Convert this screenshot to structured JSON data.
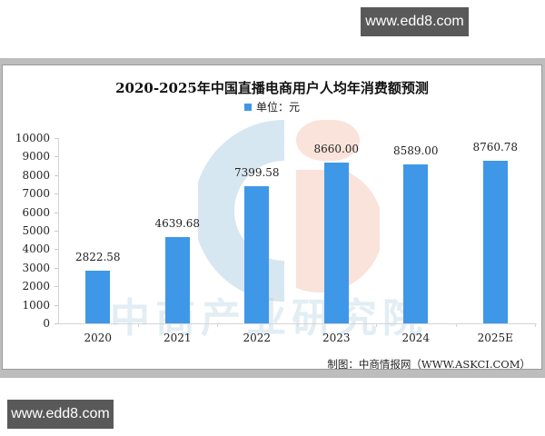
{
  "watermarks": {
    "top": "www.edd8.com",
    "bottom": "www.edd8.com"
  },
  "chart": {
    "title": "2020-2025年中国直播电商用户人均年消费额预测",
    "legend_label": "单位：元",
    "source": "制图：中商情报网（WWW.ASKCI.COM）",
    "background_watermark": "中商产业研究院",
    "bar_color": "#3f97e8"
  },
  "chart_data": {
    "type": "bar",
    "title": "2020-2025年中国直播电商用户人均年消费额预测",
    "xlabel": "",
    "ylabel": "",
    "legend": [
      "单位：元"
    ],
    "legend_position": "top",
    "categories": [
      "2020",
      "2021",
      "2022",
      "2023",
      "2024",
      "2025E"
    ],
    "values": [
      2822.58,
      4639.68,
      7399.58,
      8660.0,
      8589.0,
      8760.78
    ],
    "value_labels": [
      "2822.58",
      "4639.68",
      "7399.58",
      "8660.00",
      "8589.00",
      "8760.78"
    ],
    "yticks": [
      "0",
      "1000",
      "2000",
      "3000",
      "4000",
      "5000",
      "6000",
      "7000",
      "8000",
      "9000",
      "10000"
    ],
    "ylim": [
      0,
      10000
    ],
    "grid": false,
    "annotations": [
      "制图：中商情报网（WWW.ASKCI.COM）"
    ]
  }
}
